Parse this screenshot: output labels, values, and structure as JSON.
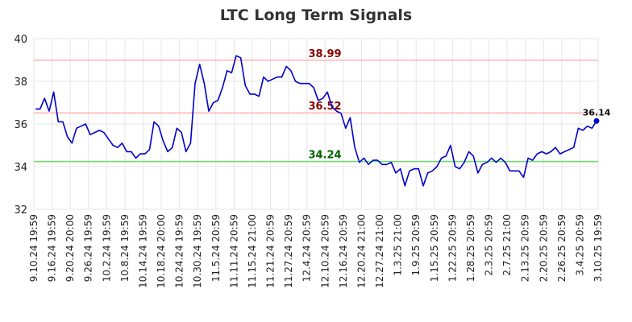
{
  "chart_data": {
    "type": "line",
    "title": "LTC Long Term Signals",
    "ylim": [
      32,
      40
    ],
    "yticks": [
      32,
      34,
      36,
      38,
      40
    ],
    "grid": true,
    "xtick_labels": [
      "9.10.24 19:59",
      "9.16.24 19:59",
      "9.20.24 20:00",
      "9.26.24 19:59",
      "10.2.24 19:59",
      "10.8.24 19:59",
      "10.14.24 19:59",
      "10.18.24 20:00",
      "10.24.24 19:59",
      "10.30.24 19:59",
      "11.5.24 20:59",
      "11.11.24 20:59",
      "11.15.24 21:00",
      "11.21.24 20:59",
      "11.27.24 20:59",
      "12.4.24 20:59",
      "12.10.24 20:59",
      "12.16.24 20:59",
      "12.20.24 21:00",
      "12.27.24 21:00",
      "1.3.25 21:00",
      "1.9.25 20:59",
      "1.15.25 20:59",
      "1.22.25 20:59",
      "1.28.25 20:59",
      "2.3.25 20:59",
      "2.7.25 21:00",
      "2.13.25 20:59",
      "2.20.25 20:59",
      "2.26.25 20:59",
      "3.4.25 20:59",
      "3.10.25 19:59"
    ],
    "levels": [
      {
        "value": 38.99,
        "label": "38.99",
        "line_color": "#ffb3b3",
        "text_color": "#8b0000"
      },
      {
        "value": 36.52,
        "label": "36.52",
        "line_color": "#ffb3b3",
        "text_color": "#8b0000"
      },
      {
        "value": 34.24,
        "label": "34.24",
        "line_color": "#66dd66",
        "text_color": "#006400"
      }
    ],
    "series": [
      {
        "color": "#0000cc",
        "values": [
          36.7,
          36.7,
          37.2,
          36.6,
          37.5,
          36.1,
          36.1,
          35.4,
          35.1,
          35.8,
          35.9,
          36.0,
          35.5,
          35.6,
          35.7,
          35.6,
          35.3,
          35.0,
          34.9,
          35.1,
          34.7,
          34.7,
          34.4,
          34.6,
          34.6,
          34.8,
          36.1,
          35.9,
          35.2,
          34.7,
          34.9,
          35.8,
          35.6,
          34.7,
          35.1,
          37.9,
          38.8,
          37.9,
          36.6,
          37.0,
          37.1,
          37.7,
          38.5,
          38.4,
          39.2,
          39.1,
          37.8,
          37.4,
          37.4,
          37.3,
          38.2,
          38.0,
          38.1,
          38.2,
          38.2,
          38.7,
          38.5,
          38.0,
          37.9,
          37.9,
          37.9,
          37.7,
          37.1,
          37.2,
          37.5,
          36.8,
          36.6,
          36.5,
          35.8,
          36.3,
          34.9,
          34.2,
          34.4,
          34.1,
          34.3,
          34.3,
          34.1,
          34.1,
          34.2,
          33.7,
          33.9,
          33.1,
          33.8,
          33.9,
          33.9,
          33.1,
          33.7,
          33.8,
          34.0,
          34.4,
          34.5,
          35.0,
          34.0,
          33.9,
          34.2,
          34.7,
          34.5,
          33.7,
          34.1,
          34.2,
          34.4,
          34.2,
          34.4,
          34.2,
          33.8,
          33.8,
          33.8,
          33.5,
          34.4,
          34.3,
          34.6,
          34.7,
          34.6,
          34.7,
          34.9,
          34.6,
          34.7,
          34.8,
          34.9,
          35.8,
          35.7,
          35.9,
          35.8,
          36.14
        ]
      }
    ],
    "last_value_label": "36.14"
  }
}
